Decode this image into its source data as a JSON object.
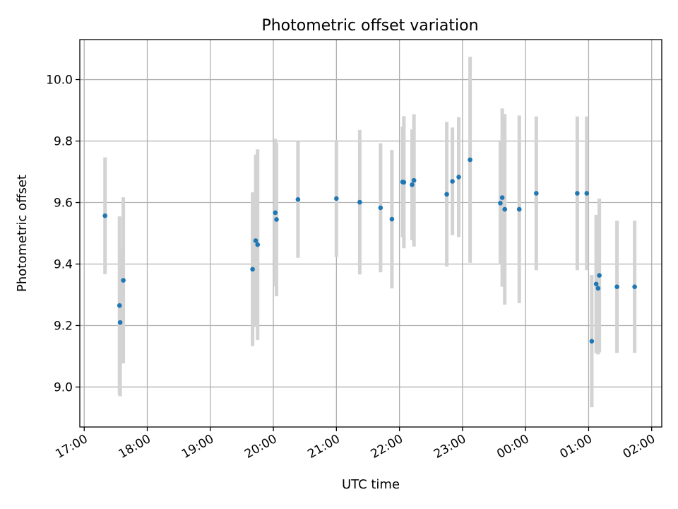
{
  "chart_data": {
    "type": "scatter",
    "title": "Photometric offset variation",
    "xlabel": "UTC time",
    "ylabel": "Photometric offset",
    "x_tick_labels": [
      "17:00",
      "18:00",
      "19:00",
      "20:00",
      "21:00",
      "22:00",
      "23:00",
      "00:00",
      "01:00",
      "02:00"
    ],
    "x_tick_values": [
      17,
      18,
      19,
      20,
      21,
      22,
      23,
      24,
      25,
      26
    ],
    "y_ticks": [
      9.0,
      9.2,
      9.4,
      9.6,
      9.8,
      10.0
    ],
    "y_tick_labels": [
      "9.0",
      "9.2",
      "9.4",
      "9.6",
      "9.8",
      "10.0"
    ],
    "xlim": [
      16.93,
      26.16
    ],
    "ylim": [
      8.87,
      10.13
    ],
    "grid": true,
    "colors": {
      "point": "#1f77b4",
      "errorbar": "#d3d3d3"
    },
    "points": [
      {
        "x": 17.33,
        "y": 9.557,
        "err": 0.19
      },
      {
        "x": 17.56,
        "y": 9.265,
        "err": 0.29
      },
      {
        "x": 17.57,
        "y": 9.21,
        "err": 0.24
      },
      {
        "x": 17.62,
        "y": 9.347,
        "err": 0.27
      },
      {
        "x": 19.67,
        "y": 9.383,
        "err": 0.25
      },
      {
        "x": 19.72,
        "y": 9.476,
        "err": 0.28
      },
      {
        "x": 19.75,
        "y": 9.463,
        "err": 0.31
      },
      {
        "x": 20.03,
        "y": 9.567,
        "err": 0.24
      },
      {
        "x": 20.05,
        "y": 9.545,
        "err": 0.25
      },
      {
        "x": 20.39,
        "y": 9.61,
        "err": 0.19
      },
      {
        "x": 21.0,
        "y": 9.613,
        "err": 0.19
      },
      {
        "x": 21.37,
        "y": 9.601,
        "err": 0.235
      },
      {
        "x": 21.7,
        "y": 9.583,
        "err": 0.21
      },
      {
        "x": 21.88,
        "y": 9.546,
        "err": 0.225
      },
      {
        "x": 22.05,
        "y": 9.667,
        "err": 0.18
      },
      {
        "x": 22.07,
        "y": 9.666,
        "err": 0.215
      },
      {
        "x": 22.2,
        "y": 9.658,
        "err": 0.18
      },
      {
        "x": 22.23,
        "y": 9.672,
        "err": 0.215
      },
      {
        "x": 22.75,
        "y": 9.627,
        "err": 0.235
      },
      {
        "x": 22.84,
        "y": 9.669,
        "err": 0.175
      },
      {
        "x": 22.94,
        "y": 9.683,
        "err": 0.195
      },
      {
        "x": 23.12,
        "y": 9.739,
        "err": 0.335
      },
      {
        "x": 23.6,
        "y": 9.598,
        "err": 0.2
      },
      {
        "x": 23.63,
        "y": 9.616,
        "err": 0.29
      },
      {
        "x": 23.67,
        "y": 9.578,
        "err": 0.31
      },
      {
        "x": 23.9,
        "y": 9.578,
        "err": 0.305
      },
      {
        "x": 24.17,
        "y": 9.63,
        "err": 0.25
      },
      {
        "x": 24.82,
        "y": 9.63,
        "err": 0.25
      },
      {
        "x": 24.97,
        "y": 9.63,
        "err": 0.25
      },
      {
        "x": 25.05,
        "y": 9.149,
        "err": 0.215
      },
      {
        "x": 25.12,
        "y": 9.335,
        "err": 0.225
      },
      {
        "x": 25.15,
        "y": 9.321,
        "err": 0.215
      },
      {
        "x": 25.17,
        "y": 9.363,
        "err": 0.25
      },
      {
        "x": 25.45,
        "y": 9.326,
        "err": 0.215
      },
      {
        "x": 25.73,
        "y": 9.326,
        "err": 0.215
      }
    ]
  }
}
